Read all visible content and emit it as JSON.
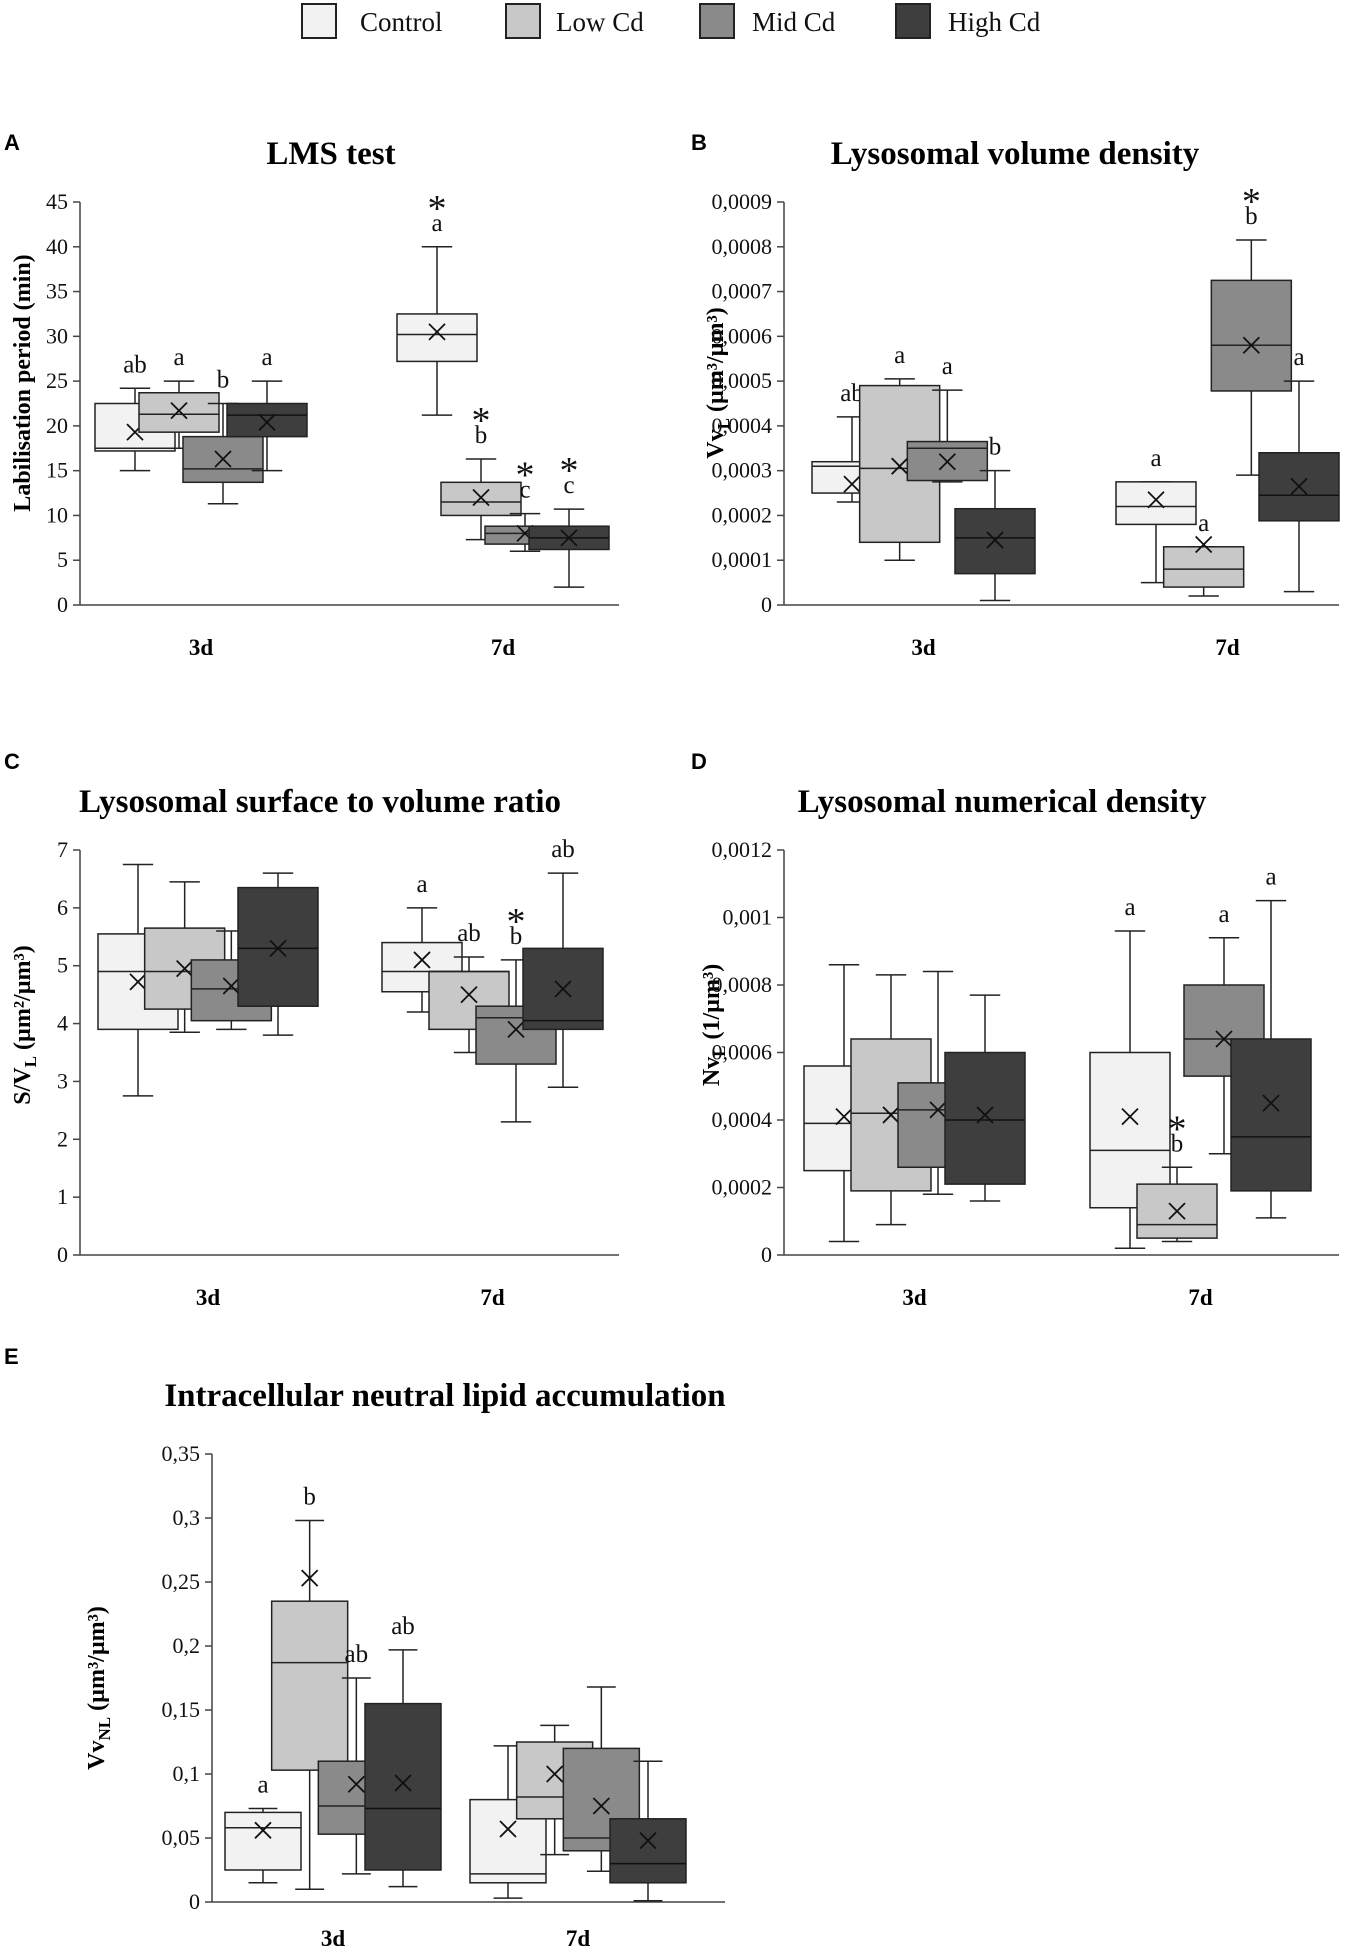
{
  "legend": {
    "items": [
      {
        "label": "Control",
        "color": "#f2f2f2"
      },
      {
        "label": "Low Cd",
        "color": "#c8c8c8"
      },
      {
        "label": "Mid Cd",
        "color": "#8a8a8a"
      },
      {
        "label": "High Cd",
        "color": "#3e3e3e"
      }
    ]
  },
  "chart_data": [
    {
      "id": "A",
      "panel_label": "A",
      "type": "box",
      "title": "LMS test",
      "ylabel": "Labilisation period (min)",
      "ylabel_sub": "",
      "ylabel_after": "",
      "ylim": [
        0,
        45
      ],
      "yticks": [
        "0",
        "5",
        "10",
        "15",
        "20",
        "25",
        "30",
        "35",
        "40",
        "45"
      ],
      "categories": [
        "3d",
        "7d"
      ],
      "series": [
        "Control",
        "Low Cd",
        "Mid Cd",
        "High Cd"
      ],
      "boxes": [
        [
          {
            "min": 15,
            "q1": 17.2,
            "median": 17.5,
            "q3": 22.5,
            "max": 24.2,
            "mean": 19.3,
            "letter": "ab",
            "star": false
          },
          {
            "min": 17.5,
            "q1": 19.3,
            "median": 21.3,
            "q3": 23.7,
            "max": 25,
            "mean": 21.7,
            "letter": "a",
            "star": false
          },
          {
            "min": 11.3,
            "q1": 13.7,
            "median": 15.2,
            "q3": 18.8,
            "max": 22.5,
            "mean": 16.3,
            "letter": "b",
            "star": false
          },
          {
            "min": 15,
            "q1": 18.8,
            "median": 21.2,
            "q3": 22.5,
            "max": 25,
            "mean": 20.4,
            "letter": "a",
            "star": false
          }
        ],
        [
          {
            "min": 21.2,
            "q1": 27.2,
            "median": 30.2,
            "q3": 32.5,
            "max": 40,
            "mean": 30.5,
            "letter": "a",
            "star": true
          },
          {
            "min": 7.3,
            "q1": 10,
            "median": 11.5,
            "q3": 13.7,
            "max": 16.3,
            "mean": 12,
            "letter": "b",
            "star": true
          },
          {
            "min": 6,
            "q1": 6.8,
            "median": 8,
            "q3": 8.8,
            "max": 10.2,
            "mean": 8,
            "letter": "c",
            "star": true
          },
          {
            "min": 2,
            "q1": 6.2,
            "median": 7.5,
            "q3": 8.8,
            "max": 10.7,
            "mean": 7.5,
            "letter": "c",
            "star": true
          }
        ]
      ]
    },
    {
      "id": "B",
      "panel_label": "B",
      "type": "box",
      "title": "Lysosomal volume density",
      "ylabel": "Vv",
      "ylabel_sub": "L",
      "ylabel_after": " (µm³/µm³)",
      "ylim": [
        0,
        0.0009
      ],
      "yticks": [
        "0",
        "0,0001",
        "0,0002",
        "0,0003",
        "0,0004",
        "0,0005",
        "0,0006",
        "0,0007",
        "0,0008",
        "0,0009"
      ],
      "categories": [
        "3d",
        "7d"
      ],
      "series": [
        "Control",
        "Low Cd",
        "Mid Cd",
        "High Cd"
      ],
      "boxes": [
        [
          {
            "min": 0.00023,
            "q1": 0.00025,
            "median": 0.00031,
            "q3": 0.00032,
            "max": 0.00042,
            "mean": 0.00027,
            "letter": "ab",
            "star": false
          },
          {
            "min": 0.0001,
            "q1": 0.00014,
            "median": 0.000305,
            "q3": 0.00049,
            "max": 0.000505,
            "mean": 0.00031,
            "letter": "a",
            "star": false
          },
          {
            "min": 0.000275,
            "q1": 0.000278,
            "median": 0.00035,
            "q3": 0.000365,
            "max": 0.00048,
            "mean": 0.00032,
            "letter": "a",
            "star": false
          },
          {
            "min": 1e-05,
            "q1": 7e-05,
            "median": 0.00015,
            "q3": 0.000215,
            "max": 0.0003,
            "mean": 0.000145,
            "letter": "b",
            "star": false
          }
        ],
        [
          {
            "min": 5e-05,
            "q1": 0.00018,
            "median": 0.00022,
            "q3": 0.000275,
            "max": 0.000275,
            "mean": 0.000235,
            "letter": "a",
            "star": false
          },
          {
            "min": 2e-05,
            "q1": 4e-05,
            "median": 8e-05,
            "q3": 0.00013,
            "max": 0.00013,
            "mean": 0.000135,
            "letter": "a",
            "star": false
          },
          {
            "min": 0.00029,
            "q1": 0.000478,
            "median": 0.00058,
            "q3": 0.000725,
            "max": 0.000815,
            "mean": 0.00058,
            "letter": "b",
            "star": true
          },
          {
            "min": 3e-05,
            "q1": 0.000188,
            "median": 0.000245,
            "q3": 0.00034,
            "max": 0.0005,
            "mean": 0.000265,
            "letter": "a",
            "star": false
          }
        ]
      ]
    },
    {
      "id": "C",
      "panel_label": "C",
      "type": "box",
      "title": "Lysosomal surface to volume ratio",
      "ylabel": "S/V",
      "ylabel_sub": "L",
      "ylabel_after": " (µm²/µm³)",
      "ylim": [
        0,
        7
      ],
      "yticks": [
        "0",
        "1",
        "2",
        "3",
        "4",
        "5",
        "6",
        "7"
      ],
      "categories": [
        "3d",
        "7d"
      ],
      "series": [
        "Control",
        "Low Cd",
        "Mid Cd",
        "High Cd"
      ],
      "boxes": [
        [
          {
            "min": 2.75,
            "q1": 3.9,
            "median": 4.9,
            "q3": 5.55,
            "max": 6.75,
            "mean": 4.72,
            "letter": "",
            "star": false
          },
          {
            "min": 3.85,
            "q1": 4.25,
            "median": 4.9,
            "q3": 5.65,
            "max": 6.45,
            "mean": 4.95,
            "letter": "",
            "star": false
          },
          {
            "min": 3.9,
            "q1": 4.05,
            "median": 4.6,
            "q3": 5.1,
            "max": 5.6,
            "mean": 4.65,
            "letter": "",
            "star": false
          },
          {
            "min": 3.8,
            "q1": 4.3,
            "median": 5.3,
            "q3": 6.35,
            "max": 6.6,
            "mean": 5.3,
            "letter": "",
            "star": false
          }
        ],
        [
          {
            "min": 4.2,
            "q1": 4.55,
            "median": 4.9,
            "q3": 5.4,
            "max": 6.0,
            "mean": 5.1,
            "letter": "a",
            "star": false
          },
          {
            "min": 3.5,
            "q1": 3.9,
            "median": 4.9,
            "q3": 4.9,
            "max": 5.15,
            "mean": 4.5,
            "letter": "ab",
            "star": false
          },
          {
            "min": 2.3,
            "q1": 3.3,
            "median": 4.1,
            "q3": 4.3,
            "max": 5.1,
            "mean": 3.9,
            "letter": "b",
            "star": true
          },
          {
            "min": 2.9,
            "q1": 3.9,
            "median": 4.05,
            "q3": 5.3,
            "max": 6.6,
            "mean": 4.6,
            "letter": "ab",
            "star": false
          }
        ]
      ]
    },
    {
      "id": "D",
      "panel_label": "D",
      "type": "box",
      "title": "Lysosomal numerical density",
      "ylabel": "Nv",
      "ylabel_sub": "L",
      "ylabel_after": " (1/µm³)",
      "ylim": [
        0,
        0.0012
      ],
      "yticks": [
        "0",
        "0,0002",
        "0,0004",
        "0,0006",
        "0,0008",
        "0,001",
        "0,0012"
      ],
      "categories": [
        "3d",
        "7d"
      ],
      "series": [
        "Control",
        "Low Cd",
        "Mid Cd",
        "High Cd"
      ],
      "boxes": [
        [
          {
            "min": 4e-05,
            "q1": 0.00025,
            "median": 0.00039,
            "q3": 0.00056,
            "max": 0.00086,
            "mean": 0.00041,
            "letter": "",
            "star": false
          },
          {
            "min": 9e-05,
            "q1": 0.00019,
            "median": 0.00042,
            "q3": 0.00064,
            "max": 0.00083,
            "mean": 0.000415,
            "letter": "",
            "star": false
          },
          {
            "min": 0.00018,
            "q1": 0.00026,
            "median": 0.00043,
            "q3": 0.00051,
            "max": 0.00084,
            "mean": 0.00043,
            "letter": "",
            "star": false
          },
          {
            "min": 0.00016,
            "q1": 0.00021,
            "median": 0.0004,
            "q3": 0.0006,
            "max": 0.00077,
            "mean": 0.000415,
            "letter": "",
            "star": false
          }
        ],
        [
          {
            "min": 2e-05,
            "q1": 0.00014,
            "median": 0.00031,
            "q3": 0.0006,
            "max": 0.00096,
            "mean": 0.00041,
            "letter": "a",
            "star": false
          },
          {
            "min": 4e-05,
            "q1": 5e-05,
            "median": 9e-05,
            "q3": 0.00021,
            "max": 0.00026,
            "mean": 0.00013,
            "letter": "b",
            "star": true
          },
          {
            "min": 0.0003,
            "q1": 0.00053,
            "median": 0.00064,
            "q3": 0.0008,
            "max": 0.00094,
            "mean": 0.00064,
            "letter": "a",
            "star": false
          },
          {
            "min": 0.00011,
            "q1": 0.00019,
            "median": 0.00035,
            "q3": 0.00064,
            "max": 0.00105,
            "mean": 0.00045,
            "letter": "a",
            "star": false
          }
        ]
      ]
    },
    {
      "id": "E",
      "panel_label": "E",
      "type": "box",
      "title": "Intracellular neutral lipid accumulation",
      "ylabel": "Vv",
      "ylabel_sub": "NL",
      "ylabel_after": " (µm³/µm³)",
      "ylim": [
        0,
        0.35
      ],
      "yticks": [
        "0",
        "0,05",
        "0,1",
        "0,15",
        "0,2",
        "0,25",
        "0,3",
        "0,35"
      ],
      "categories": [
        "3d",
        "7d"
      ],
      "series": [
        "Control",
        "Low Cd",
        "Mid Cd",
        "High Cd"
      ],
      "boxes": [
        [
          {
            "min": 0.015,
            "q1": 0.025,
            "median": 0.058,
            "q3": 0.07,
            "max": 0.073,
            "mean": 0.056,
            "letter": "a",
            "star": false
          },
          {
            "min": 0.01,
            "q1": 0.103,
            "median": 0.187,
            "q3": 0.235,
            "max": 0.298,
            "mean": 0.253,
            "letter": "b",
            "star": false
          },
          {
            "min": 0.022,
            "q1": 0.053,
            "median": 0.075,
            "q3": 0.11,
            "max": 0.175,
            "mean": 0.092,
            "letter": "ab",
            "star": false
          },
          {
            "min": 0.012,
            "q1": 0.025,
            "median": 0.073,
            "q3": 0.155,
            "max": 0.197,
            "mean": 0.093,
            "letter": "ab",
            "star": false
          }
        ],
        [
          {
            "min": 0.003,
            "q1": 0.015,
            "median": 0.022,
            "q3": 0.08,
            "max": 0.122,
            "mean": 0.057,
            "letter": "",
            "star": false
          },
          {
            "min": 0.037,
            "q1": 0.065,
            "median": 0.082,
            "q3": 0.125,
            "max": 0.138,
            "mean": 0.1,
            "letter": "",
            "star": false
          },
          {
            "min": 0.024,
            "q1": 0.04,
            "median": 0.05,
            "q3": 0.12,
            "max": 0.168,
            "mean": 0.075,
            "letter": "",
            "star": false
          },
          {
            "min": 0.001,
            "q1": 0.015,
            "median": 0.03,
            "q3": 0.065,
            "max": 0.11,
            "mean": 0.048,
            "letter": "",
            "star": false
          }
        ]
      ]
    }
  ]
}
